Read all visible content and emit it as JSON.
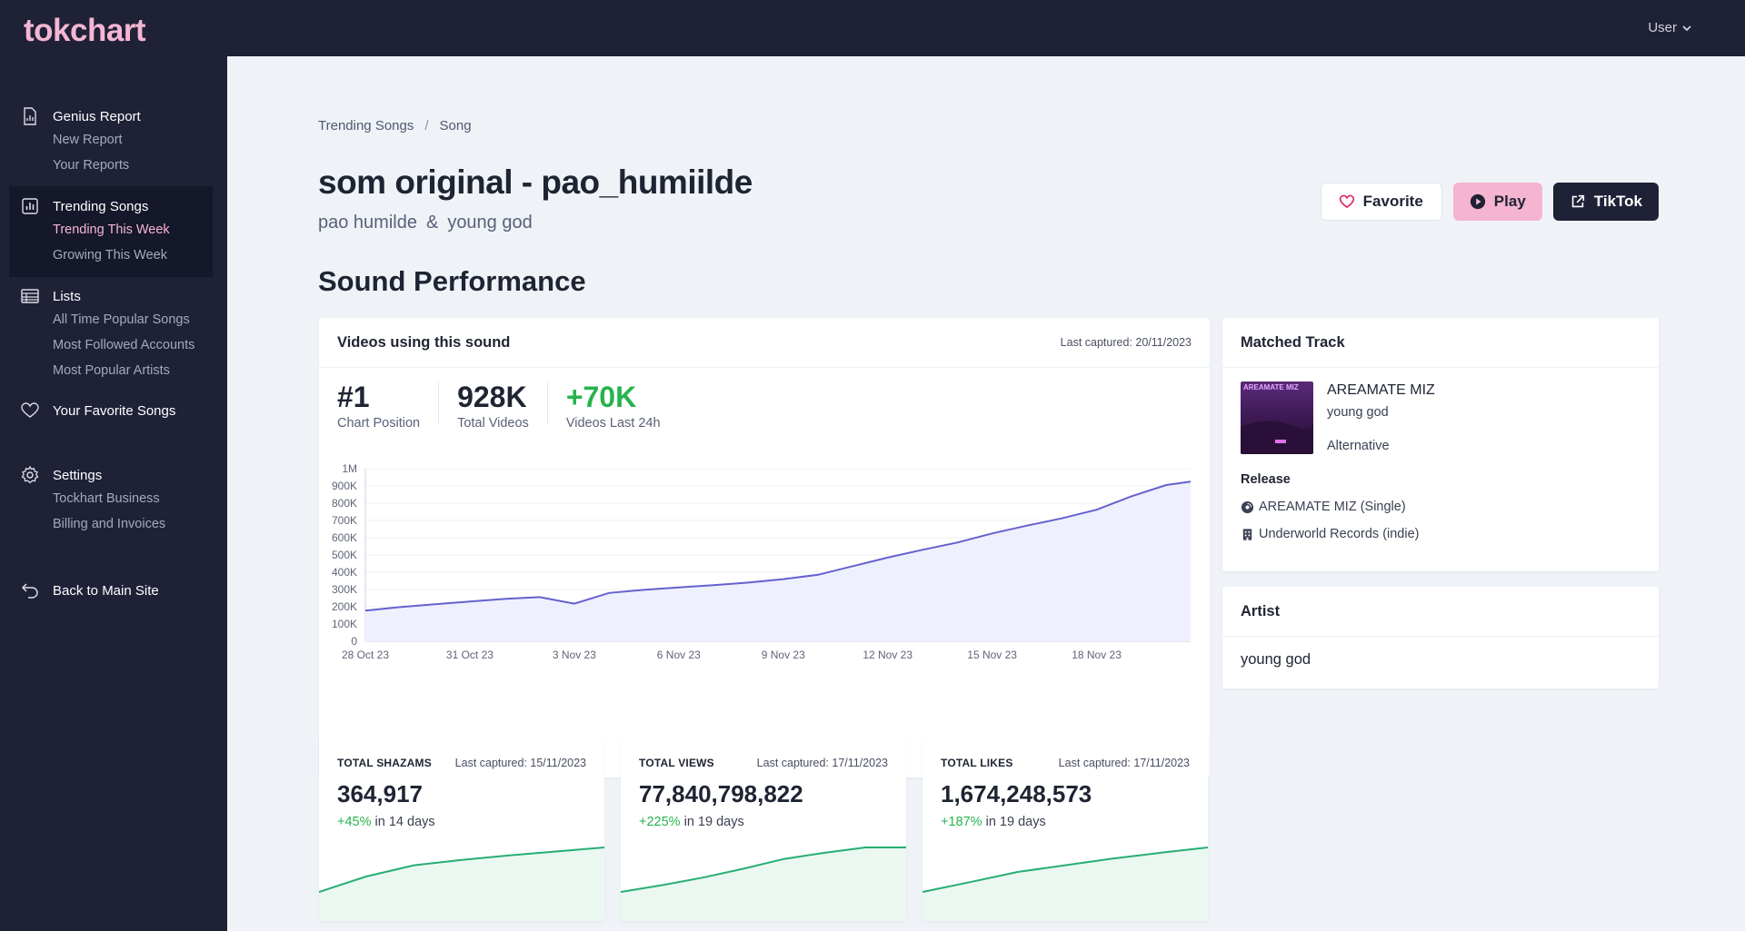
{
  "app": {
    "logo": "tokchart",
    "user_menu": "User"
  },
  "sidebar": {
    "groups": [
      {
        "label": "Genius Report",
        "icon": "document-chart-icon",
        "items": [
          "New Report",
          "Your Reports"
        ]
      },
      {
        "label": "Trending Songs",
        "icon": "bar-chart-icon",
        "items": [
          "Trending This Week",
          "Growing This Week"
        ],
        "active": true,
        "current_item": "Trending This Week"
      },
      {
        "label": "Lists",
        "icon": "table-icon",
        "items": [
          "All Time Popular Songs",
          "Most Followed Accounts",
          "Most Popular Artists"
        ]
      },
      {
        "label": "Your Favorite Songs",
        "icon": "heart-icon",
        "items": []
      },
      {
        "label": "Settings",
        "icon": "gear-icon",
        "items": [
          "Tockhart Business",
          "Billing and Invoices"
        ]
      },
      {
        "label": "Back to Main Site",
        "icon": "back-arrow-icon",
        "items": []
      }
    ]
  },
  "breadcrumb": {
    "items": [
      "Trending Songs",
      "Song"
    ],
    "separator": "/"
  },
  "song": {
    "title": "som original - pao_humiilde",
    "artists": [
      "pao humilde",
      "young god"
    ],
    "artist_separator": "&"
  },
  "actions": {
    "favorite": "Favorite",
    "play": "Play",
    "tiktok": "TikTok"
  },
  "section_title": "Sound Performance",
  "videos_card": {
    "title": "Videos using this sound",
    "last_captured": "Last captured: 20/11/2023",
    "stats": [
      {
        "value": "#1",
        "label": "Chart Position"
      },
      {
        "value": "928K",
        "label": "Total Videos"
      },
      {
        "value": "+70K",
        "label": "Videos Last 24h"
      }
    ]
  },
  "chart_data": [
    {
      "type": "area",
      "title": "Videos using this sound",
      "x_ticks": [
        "28 Oct 23",
        "31 Oct 23",
        "3 Nov 23",
        "6 Nov 23",
        "9 Nov 23",
        "12 Nov 23",
        "15 Nov 23",
        "18 Nov 23"
      ],
      "y_ticks": [
        "0",
        "100K",
        "200K",
        "300K",
        "400K",
        "500K",
        "600K",
        "700K",
        "800K",
        "900K",
        "1M"
      ],
      "ylim": [
        0,
        1000000
      ],
      "xlim": [
        0,
        23.7
      ],
      "grid": true,
      "color": "#6461cf",
      "fill": "#eef0fd",
      "x": [
        0,
        1,
        2,
        3,
        4,
        5,
        6,
        7,
        8,
        9,
        10,
        11,
        12,
        13,
        14,
        15,
        16,
        17,
        18,
        19,
        20,
        21,
        22,
        23,
        23.7
      ],
      "values": [
        178000,
        198000,
        215000,
        230000,
        245000,
        256000,
        218000,
        280000,
        298000,
        312000,
        325000,
        340000,
        360000,
        385000,
        435000,
        485000,
        530000,
        572000,
        625000,
        670000,
        712000,
        762000,
        840000,
        905000,
        925000
      ]
    },
    {
      "type": "area",
      "title": "TOTAL SHAZAMS",
      "color": "#27ae72",
      "fill": "#eaf8f1",
      "x": [
        0,
        1,
        2,
        3,
        4,
        5,
        6
      ],
      "values": [
        0,
        0.35,
        0.6,
        0.72,
        0.82,
        0.91,
        1.0
      ]
    },
    {
      "type": "area",
      "title": "TOTAL VIEWS",
      "color": "#27ae72",
      "fill": "#eaf8f1",
      "x": [
        0,
        1,
        2,
        3,
        4,
        5,
        6,
        7
      ],
      "values": [
        0,
        0.15,
        0.32,
        0.52,
        0.74,
        0.88,
        1.0,
        1.0
      ]
    },
    {
      "type": "area",
      "title": "TOTAL LIKES",
      "color": "#27ae72",
      "fill": "#eaf8f1",
      "x": [
        0,
        1,
        2,
        3,
        4,
        5,
        6
      ],
      "values": [
        0,
        0.22,
        0.45,
        0.6,
        0.75,
        0.88,
        1.0
      ]
    }
  ],
  "matched_track": {
    "title": "Matched Track",
    "cover_text": "AREAMATE MIZ",
    "track": "AREAMATE MIZ",
    "artist": "young god",
    "genre": "Alternative",
    "release_label": "Release",
    "release": "AREAMATE MIZ (Single)",
    "label": "Underworld Records (indie)"
  },
  "artist_card": {
    "title": "Artist",
    "name": "young god"
  },
  "mini_cards": [
    {
      "label": "TOTAL SHAZAMS",
      "last_captured": "Last captured: 15/11/2023",
      "value": "364,917",
      "pct": "+45%",
      "period": "in 14 days"
    },
    {
      "label": "TOTAL VIEWS",
      "last_captured": "Last captured: 17/11/2023",
      "value": "77,840,798,822",
      "pct": "+225%",
      "period": "in 19 days"
    },
    {
      "label": "TOTAL LIKES",
      "last_captured": "Last captured: 17/11/2023",
      "value": "1,674,248,573",
      "pct": "+187%",
      "period": "in 19 days"
    }
  ]
}
